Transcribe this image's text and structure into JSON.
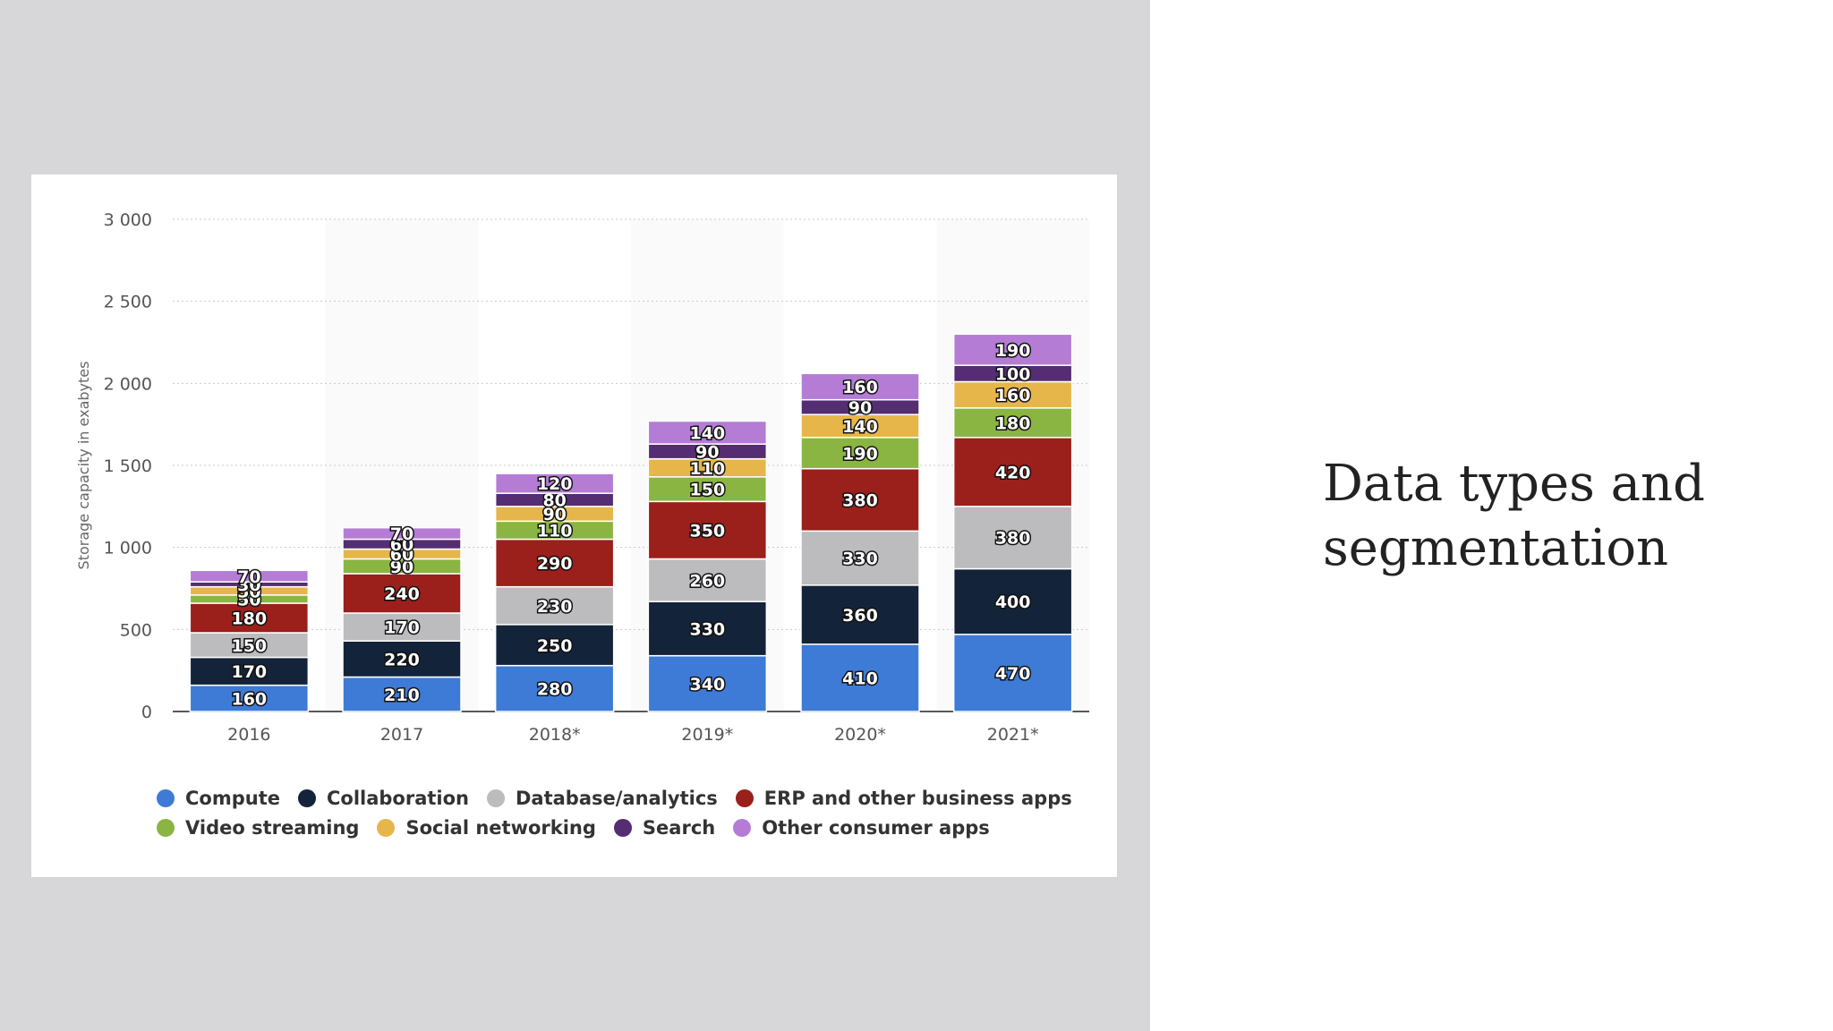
{
  "slide": {
    "title": "Data types and segmentation"
  },
  "chart_data": {
    "type": "bar",
    "stacked": true,
    "ylabel": "Storage capacity in exabytes",
    "xlabel": "",
    "title": "",
    "ylim": [
      0,
      3000
    ],
    "yticks": [
      0,
      500,
      1000,
      1500,
      2000,
      2500,
      3000
    ],
    "ytick_labels": [
      "0",
      "500",
      "1 000",
      "1 500",
      "2 000",
      "2 500",
      "3 000"
    ],
    "categories": [
      "2016",
      "2017",
      "2018*",
      "2019*",
      "2020*",
      "2021*"
    ],
    "grid": true,
    "legend_position": "bottom",
    "data_labels": true,
    "series": [
      {
        "name": "Compute",
        "color": "#3e7bd6",
        "values": [
          160,
          210,
          280,
          340,
          410,
          470
        ]
      },
      {
        "name": "Collaboration",
        "color": "#13233a",
        "values": [
          170,
          220,
          250,
          330,
          360,
          400
        ]
      },
      {
        "name": "Database/analytics",
        "color": "#bcbcbe",
        "values": [
          150,
          170,
          230,
          260,
          330,
          380
        ]
      },
      {
        "name": "ERP and other business apps",
        "color": "#9b1f1a",
        "values": [
          180,
          240,
          290,
          350,
          380,
          420
        ]
      },
      {
        "name": "Video streaming",
        "color": "#8ab543",
        "values": [
          50,
          90,
          110,
          150,
          190,
          180
        ]
      },
      {
        "name": "Social networking",
        "color": "#e6b64a",
        "values": [
          50,
          60,
          90,
          110,
          140,
          160
        ]
      },
      {
        "name": "Search",
        "color": "#542d72",
        "values": [
          30,
          60,
          80,
          90,
          90,
          100
        ]
      },
      {
        "name": "Other consumer apps",
        "color": "#b57cd6",
        "values": [
          70,
          70,
          120,
          140,
          160,
          190
        ]
      }
    ]
  }
}
